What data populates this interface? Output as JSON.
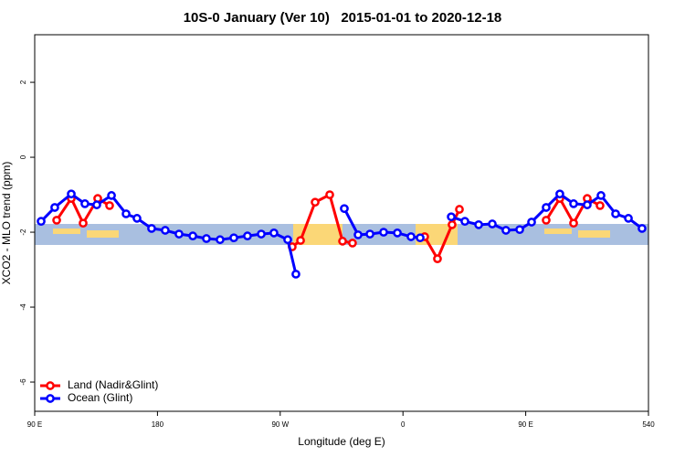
{
  "chart_data": {
    "type": "line",
    "title": "10S-0 January (Ver 10)   2015-01-01 to 2020-12-18",
    "x_label": "Longitude (deg E)",
    "y_label": "XCO2 - MLO trend (ppm)",
    "xlim": [
      90,
      540
    ],
    "ylim": [
      -6.78,
      3.27
    ],
    "xticks": [
      {
        "value": 90,
        "label": "90 E"
      },
      180,
      {
        "value": 270,
        "label": "90 W"
      },
      {
        "value": 360,
        "label": "0"
      },
      {
        "value": 450,
        "label": "90 E"
      },
      540
    ],
    "yticks": [
      -6,
      -4,
      -2,
      0,
      2
    ],
    "legend": "bottom-left",
    "series": [
      {
        "name": "Land (Nadir&Glint)",
        "color": "#ff0000",
        "x": [
          106.1,
          116.8,
          125.5,
          136.2,
          144.9,
          null,
          278.8,
          284.9,
          295.6,
          306.3,
          315.7,
          323,
          null,
          375.9,
          385.3,
          396,
          401.4,
          null,
          465,
          475,
          485.1,
          495.1,
          504.5
        ],
        "values": [
          -1.68,
          -1.1,
          -1.76,
          -1.1,
          -1.29,
          null,
          -2.39,
          -2.22,
          -1.2,
          -1.0,
          -2.24,
          -2.29,
          null,
          -2.12,
          -2.71,
          -1.8,
          -1.39,
          null,
          -1.68,
          -1.1,
          -1.76,
          -1.1,
          -1.29
        ]
      },
      {
        "name": "Ocean (Glint)",
        "color": "#0000ff",
        "x": [
          94.7,
          104.7,
          116.8,
          126.8,
          135.5,
          146.3,
          157,
          165,
          175.7,
          185.7,
          195.8,
          205.9,
          215.9,
          225.9,
          236,
          246,
          256.1,
          265.4,
          275.5,
          281.5,
          null,
          317,
          327.1,
          335.8,
          345.8,
          355.9,
          365.9,
          372.6,
          null,
          395.4,
          405.4,
          415.5,
          425.5,
          435.5,
          445.6,
          454.3,
          465,
          475,
          485.1,
          495.1,
          505.2,
          515.9,
          525.3,
          535.3
        ],
        "values": [
          -1.71,
          -1.34,
          -0.98,
          -1.24,
          -1.27,
          -1.02,
          -1.51,
          -1.63,
          -1.9,
          -1.95,
          -2.05,
          -2.1,
          -2.17,
          -2.2,
          -2.15,
          -2.1,
          -2.05,
          -2.02,
          -2.2,
          -3.12,
          null,
          -1.37,
          -2.07,
          -2.05,
          -2.0,
          -2.02,
          -2.12,
          -2.15,
          null,
          -1.59,
          -1.71,
          -1.8,
          -1.78,
          -1.95,
          -1.93,
          -1.73,
          -1.34,
          -0.98,
          -1.24,
          -1.27,
          -1.02,
          -1.51,
          -1.63,
          -1.9
        ]
      }
    ]
  }
}
